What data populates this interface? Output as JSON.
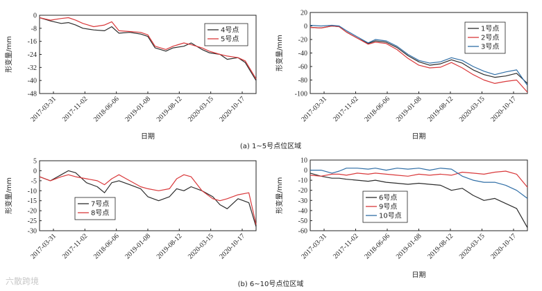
{
  "captions": {
    "a": "(a) 1~5号点位区域",
    "b": "(b) 6~10号点位区域"
  },
  "watermark": "六散跨境",
  "chart_data": [
    {
      "type": "line",
      "xlabel": "日期",
      "ylabel": "形变量/mm",
      "ylim": [
        -48,
        0
      ],
      "yticks": [
        "0",
        "-8",
        "-16",
        "-24",
        "-32",
        "-40",
        "-48"
      ],
      "xticks": [
        "2017-03-31",
        "2017-11-02",
        "2018-06-06",
        "2019-01-08",
        "2019-08-12",
        "2020-03-15",
        "2020-10-17"
      ],
      "legend": "top-right",
      "x": [
        0,
        0.3,
        0.6,
        0.8,
        1,
        1.2,
        1.5,
        1.8,
        2,
        2.2,
        2.5,
        2.8,
        3,
        3.2,
        3.5,
        3.7,
        4,
        4.2,
        4.5,
        4.7,
        5,
        5.2,
        5.5,
        5.7,
        6
      ],
      "series": [
        {
          "name": "4号点",
          "color": "#2b2b2b",
          "values": [
            -1.5,
            -3.5,
            -5,
            -4.5,
            -6,
            -8,
            -9,
            -9.5,
            -7,
            -11,
            -10.5,
            -11.5,
            -13,
            -20,
            -22,
            -20,
            -19,
            -17,
            -21,
            -23,
            -24,
            -27,
            -26,
            -29,
            -40
          ]
        },
        {
          "name": "5号点",
          "color": "#d9383a",
          "values": [
            -1.5,
            -3,
            -2,
            -1.5,
            -3,
            -5,
            -7,
            -6,
            -4,
            -9.5,
            -10,
            -10.5,
            -12,
            -19,
            -21,
            -19,
            -17,
            -18,
            -20,
            -22,
            -24,
            -25,
            -26,
            -28,
            -39
          ]
        }
      ]
    },
    {
      "type": "line",
      "xlabel": "日期",
      "ylabel": "形变量/mm",
      "ylim": [
        -100,
        20
      ],
      "yticks": [
        "20",
        "0",
        "-20",
        "-40",
        "-60",
        "-80",
        "-100"
      ],
      "xticks": [
        "2017-03-31",
        "2017-11-02",
        "2018-06-06",
        "2019-01-08",
        "2019-08-12",
        "2020-03-15",
        "2020-10-17"
      ],
      "legend": "top-right",
      "x": [
        0,
        0.3,
        0.6,
        0.8,
        1,
        1.3,
        1.6,
        1.8,
        2.1,
        2.4,
        2.7,
        3,
        3.3,
        3.6,
        3.9,
        4.2,
        4.5,
        4.8,
        5.1,
        5.4,
        5.7,
        6
      ],
      "series": [
        {
          "name": "1号点",
          "color": "#2b2b2b",
          "values": [
            -2,
            -3,
            0,
            -1,
            -9,
            -18,
            -26,
            -22,
            -24,
            -32,
            -44,
            -53,
            -58,
            -56,
            -50,
            -55,
            -65,
            -72,
            -76,
            -74,
            -70,
            -85
          ]
        },
        {
          "name": "2号点",
          "color": "#d9383a",
          "values": [
            -2,
            -3,
            0,
            -1,
            -9,
            -18,
            -27,
            -24,
            -26,
            -35,
            -48,
            -58,
            -62,
            -61,
            -54,
            -62,
            -72,
            -80,
            -85,
            -82,
            -80,
            -98
          ]
        },
        {
          "name": "3号点",
          "color": "#2f6ea6",
          "values": [
            1,
            0,
            1,
            0,
            -7,
            -16,
            -25,
            -20,
            -22,
            -30,
            -42,
            -51,
            -55,
            -53,
            -47,
            -51,
            -60,
            -67,
            -72,
            -68,
            -65,
            -88
          ]
        }
      ]
    },
    {
      "type": "line",
      "xlabel": "",
      "ylabel": "形变量/mm",
      "ylim": [
        -30,
        5
      ],
      "yticks": [
        "5",
        "0",
        "-5",
        "-10",
        "-15",
        "-20",
        "-25",
        "-30"
      ],
      "xticks": [
        "2017-03-31",
        "2017-11-02",
        "2018-06-06",
        "2019-01-08",
        "2019-08-12",
        "2020-03-15",
        "2020-10-17"
      ],
      "legend": "bottom-center",
      "x": [
        0,
        0.3,
        0.6,
        0.8,
        1,
        1.3,
        1.6,
        1.8,
        2,
        2.2,
        2.5,
        2.8,
        3,
        3.3,
        3.6,
        3.8,
        4,
        4.2,
        4.5,
        4.8,
        5,
        5.2,
        5.5,
        5.8,
        6
      ],
      "series": [
        {
          "name": "7号点",
          "color": "#2b2b2b",
          "values": [
            -3,
            -5,
            -2,
            0,
            -1,
            -6,
            -8,
            -11,
            -6,
            -5,
            -7,
            -9,
            -13,
            -15,
            -13,
            -9,
            -10,
            -8,
            -10,
            -13,
            -17,
            -19,
            -14,
            -16,
            -28
          ]
        },
        {
          "name": "8号点",
          "color": "#d9383a",
          "values": [
            -3,
            -5,
            -3,
            -2,
            -3,
            -4,
            -5,
            -7,
            -4,
            -2,
            -5,
            -8,
            -9,
            -10,
            -9,
            -4,
            -2,
            -3,
            -10,
            -14,
            -15,
            -14,
            -12,
            -11,
            -27
          ]
        }
      ]
    },
    {
      "type": "line",
      "xlabel": "日期",
      "ylabel": "形变量/mm",
      "ylim": [
        -60,
        10
      ],
      "yticks": [
        "10",
        "0",
        "-10",
        "-20",
        "-30",
        "-40",
        "-50",
        "-60"
      ],
      "xticks": [
        "2017-03-31",
        "2017-11-02",
        "2018-06-06",
        "2019-01-08",
        "2019-08-12",
        "2020-03-15",
        "2020-10-17"
      ],
      "legend": "bottom-left",
      "x": [
        0,
        0.3,
        0.6,
        0.8,
        1,
        1.3,
        1.6,
        1.8,
        2.1,
        2.4,
        2.7,
        3,
        3.3,
        3.6,
        3.9,
        4.2,
        4.5,
        4.8,
        5.1,
        5.4,
        5.7,
        6
      ],
      "series": [
        {
          "name": "6号点",
          "color": "#2b2b2b",
          "values": [
            -3,
            -6,
            -8,
            -8,
            -9,
            -10,
            -11,
            -10,
            -12,
            -13,
            -14,
            -13,
            -14,
            -15,
            -20,
            -18,
            -25,
            -30,
            -28,
            -33,
            -38,
            -57
          ]
        },
        {
          "name": "9号点",
          "color": "#d9383a",
          "values": [
            -5,
            -6,
            -4,
            -4,
            -5,
            -3,
            -4,
            -3,
            -4,
            -5,
            -6,
            -4,
            -5,
            -4,
            -5,
            -2,
            -3,
            -4,
            -2,
            -1,
            -4,
            -17
          ]
        },
        {
          "name": "10号点",
          "color": "#2f6ea6",
          "values": [
            0,
            0,
            -3,
            -1,
            2,
            2,
            1,
            2,
            0,
            2,
            1,
            2,
            0,
            2,
            1,
            -6,
            -10,
            -12,
            -12,
            -15,
            -20,
            -28
          ]
        }
      ]
    }
  ]
}
